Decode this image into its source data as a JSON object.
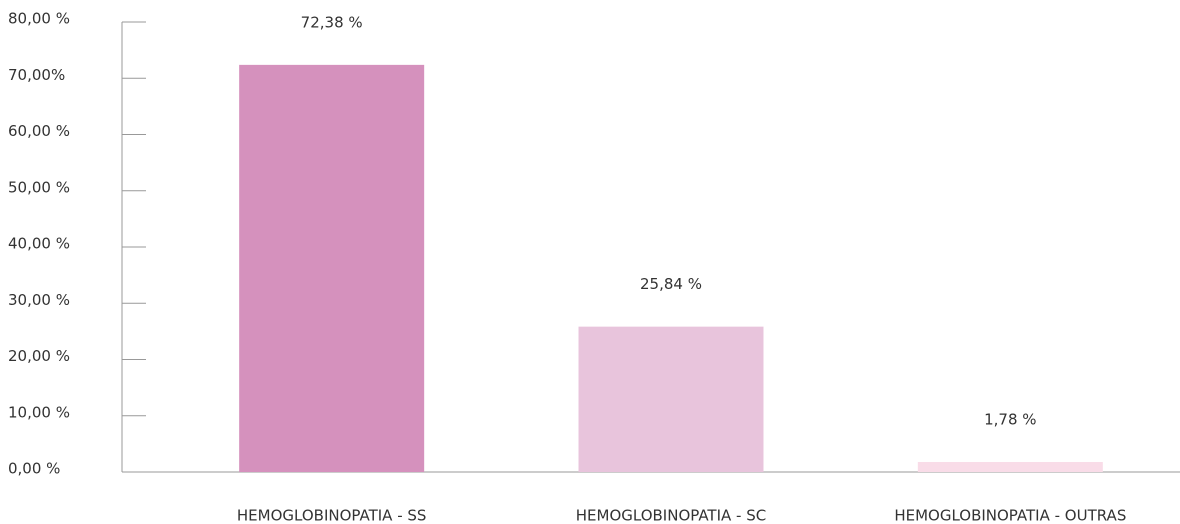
{
  "chart_data": {
    "type": "bar",
    "categories": [
      "HEMOGLOBINOPATIA - SS",
      "HEMOGLOBINOPATIA - SC",
      "HEMOGLOBINOPATIA - OUTRAS"
    ],
    "values": [
      72.38,
      25.84,
      1.78
    ],
    "value_labels": [
      "72,38 %",
      "25,84 %",
      "1,78 %"
    ],
    "colors": [
      "#d591bd",
      "#e8c4dc",
      "#f9dce8"
    ],
    "ylim": [
      0,
      80
    ],
    "yticks": [
      {
        "value": 0,
        "label": "0,00 %"
      },
      {
        "value": 10,
        "label": "10,00 %"
      },
      {
        "value": 20,
        "label": "20,00 %"
      },
      {
        "value": 30,
        "label": "30,00 %"
      },
      {
        "value": 40,
        "label": "40,00 %"
      },
      {
        "value": 50,
        "label": "50,00 %"
      },
      {
        "value": 60,
        "label": "60,00 %"
      },
      {
        "value": 70,
        "label": "70,00%"
      },
      {
        "value": 80,
        "label": "80,00 %"
      }
    ],
    "grid": false
  }
}
